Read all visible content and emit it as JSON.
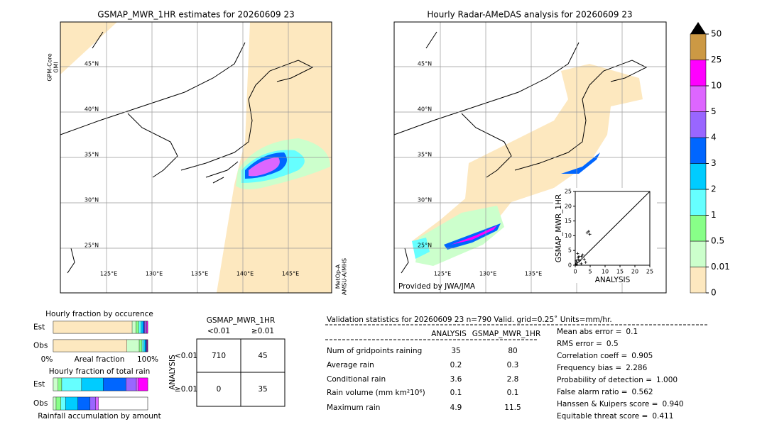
{
  "left_map": {
    "title": "GSMAP_MWR_1HR estimates for 20260609 23",
    "sensor_left": "GPM-Core",
    "sensor_left2": "GMI",
    "sensor_right": "MetOp-A",
    "sensor_right2": "AMSU-A/MHS",
    "lat_labels": [
      "45°N",
      "40°N",
      "35°N",
      "30°N",
      "25°N"
    ],
    "lon_labels": [
      "125°E",
      "130°E",
      "135°E",
      "140°E",
      "145°E"
    ]
  },
  "right_map": {
    "title": "Hourly Radar-AMeDAS analysis for 20260609 23",
    "lat_labels": [
      "45°N",
      "40°N",
      "35°N",
      "30°N",
      "25°N"
    ],
    "lon_labels": [
      "125°E",
      "130°E",
      "135°E"
    ],
    "credit": "Provided by JWA/JMA"
  },
  "colorbar": {
    "ticks": [
      0,
      0.01,
      0.5,
      1,
      2,
      3,
      4,
      5,
      10,
      25,
      50
    ],
    "colors": [
      "#fde8bf",
      "#ccffcc",
      "#88ff88",
      "#66ffff",
      "#00ccff",
      "#0066ff",
      "#9966ff",
      "#dd66ff",
      "#ff00ff",
      "#cc9944"
    ],
    "over_color": "#000000"
  },
  "scatter": {
    "xlabel": "ANALYSIS",
    "ylabel": "GSMAP_MWR_1HR",
    "xlim": [
      0,
      25
    ],
    "ylim": [
      0,
      25
    ],
    "xticks": [
      0,
      5,
      10,
      15,
      20,
      25
    ],
    "yticks": [
      0,
      5,
      10,
      15,
      20,
      25
    ],
    "x": [
      0.2,
      0.5,
      1,
      1.5,
      2,
      2.5,
      3,
      0.8,
      1,
      4,
      4.5,
      4.9,
      3.5,
      2,
      0.5,
      1.2,
      0.3
    ],
    "y": [
      0.3,
      1,
      2,
      1.5,
      3,
      3.5,
      2,
      4,
      2.5,
      11,
      11.5,
      10.5,
      1,
      0.5,
      0.2,
      3,
      1.5
    ]
  },
  "occurrence": {
    "title": "Hourly fraction by occurence",
    "xlabel": "Areal fraction",
    "left": "0%",
    "right": "100%",
    "rows": [
      {
        "name": "Est",
        "values": [
          0.835,
          0.04,
          0.03,
          0.025,
          0.02,
          0.015,
          0.015,
          0.01,
          0.01,
          0
        ]
      },
      {
        "name": "Obs",
        "values": [
          0.78,
          0.13,
          0.03,
          0.02,
          0.015,
          0.01,
          0.005,
          0.005,
          0.005,
          0
        ]
      }
    ]
  },
  "total_rain": {
    "title": "Hourly fraction of total rain",
    "xlabel": "Rainfall accumulation by amount",
    "rows": [
      {
        "name": "Est",
        "values": [
          0,
          0.05,
          0.04,
          0.21,
          0.23,
          0.24,
          0.11,
          0.02,
          0.1,
          0
        ]
      },
      {
        "name": "Obs",
        "values": [
          0,
          0.03,
          0.05,
          0.05,
          0.13,
          0.13,
          0.06,
          0.03,
          0,
          0
        ]
      }
    ]
  },
  "contingency": {
    "title": "GSMAP_MWR_1HR",
    "col_labels": [
      "<0.01",
      "≥0.01"
    ],
    "row_title": "ANALYSIS",
    "row_labels": [
      "<0.01",
      "≥0.01"
    ],
    "cells": [
      [
        710,
        45
      ],
      [
        0,
        35
      ]
    ]
  },
  "stats": {
    "header": "Validation statistics for 20260609 23  n=790 Valid. grid=0.25˚ Units=mm/hr.",
    "columns": [
      "ANALYSIS",
      "GSMAP_MWR_1HR"
    ],
    "rows": [
      [
        "Num of gridpoints raining",
        "35",
        "80"
      ],
      [
        "Average rain",
        "0.2",
        "0.3"
      ],
      [
        "Conditional rain",
        "3.6",
        "2.8"
      ],
      [
        "Rain volume (mm km²10⁶)",
        "0.1",
        "0.1"
      ],
      [
        "Maximum rain",
        "4.9",
        "11.5"
      ]
    ],
    "scores": [
      [
        "Mean abs error =",
        "0.1"
      ],
      [
        "RMS error =",
        "0.5"
      ],
      [
        "Correlation coeff =",
        "0.905"
      ],
      [
        "Frequency bias =",
        "2.286"
      ],
      [
        "Probability of detection =",
        "1.000"
      ],
      [
        "False alarm ratio =",
        "0.562"
      ],
      [
        "Hanssen & Kuipers score =",
        "0.940"
      ],
      [
        "Equitable threat score =",
        "0.411"
      ]
    ]
  }
}
